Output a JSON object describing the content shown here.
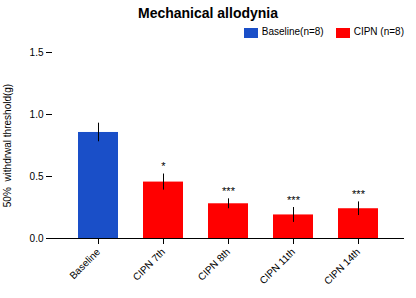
{
  "chart_data": {
    "type": "bar",
    "title": "Mechanical allodynia",
    "ylabel": "50%  withdrwal threshold(g)",
    "categories": [
      "Baseline",
      "CIPN 7th",
      "CIPN 8th",
      "CIPN 11th",
      "CIPN 14th"
    ],
    "values": [
      0.855,
      0.455,
      0.28,
      0.19,
      0.24
    ],
    "errors": [
      0.075,
      0.065,
      0.04,
      0.06,
      0.055
    ],
    "colors": [
      "#1A4FC8",
      "#FF0000",
      "#FF0000",
      "#FF0000",
      "#FF0000"
    ],
    "ylim": [
      0,
      1.5
    ],
    "yticks": [
      0.0,
      0.5,
      1.0,
      1.5
    ],
    "annotations": [
      {
        "category": "CIPN 7th",
        "text": "*"
      },
      {
        "category": "CIPN 8th",
        "text": "***"
      },
      {
        "category": "CIPN 11th",
        "text": "***"
      },
      {
        "category": "CIPN 14th",
        "text": "***"
      }
    ],
    "legend": "upper right",
    "legend_labels": [
      "Baseline(n=8)",
      "CIPN (n=8)"
    ],
    "legend_colors": [
      "#1A4FC8",
      "#FF0000"
    ],
    "grid": false
  }
}
